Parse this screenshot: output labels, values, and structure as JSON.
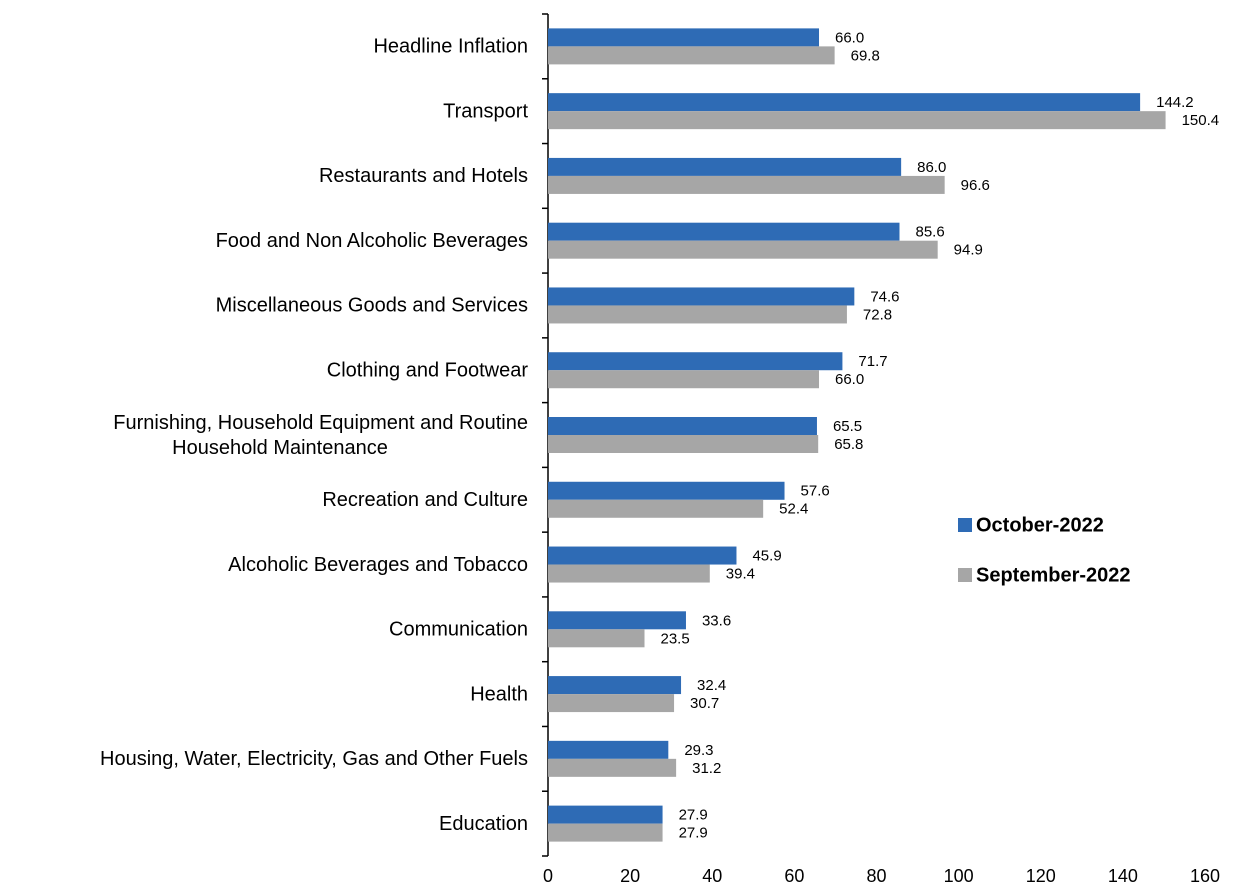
{
  "chart_data": {
    "type": "bar",
    "orientation": "horizontal",
    "categories": [
      "Headline Inflation",
      "Transport",
      "Restaurants and Hotels",
      "Food and Non Alcoholic Beverages",
      "Miscellaneous Goods and Services",
      "Clothing and Footwear",
      "Furnishing, Household Equipment and Routine Household Maintenance",
      "Recreation and Culture",
      "Alcoholic Beverages and Tobacco",
      "Communication",
      "Health",
      "Housing, Water, Electricity, Gas and Other Fuels",
      "Education"
    ],
    "category_lines": [
      [
        "Headline Inflation"
      ],
      [
        "Transport"
      ],
      [
        "Restaurants and Hotels"
      ],
      [
        "Food and Non Alcoholic Beverages"
      ],
      [
        "Miscellaneous Goods and Services"
      ],
      [
        "Clothing and Footwear"
      ],
      [
        "Furnishing, Household Equipment and Routine",
        "Household Maintenance"
      ],
      [
        "Recreation and Culture"
      ],
      [
        "Alcoholic Beverages and Tobacco"
      ],
      [
        "Communication"
      ],
      [
        "Health"
      ],
      [
        "Housing, Water, Electricity, Gas and Other Fuels"
      ],
      [
        "Education"
      ]
    ],
    "series": [
      {
        "name": "October-2022",
        "color": "#2E6BB5",
        "values": [
          66.0,
          144.2,
          86.0,
          85.6,
          74.6,
          71.7,
          65.5,
          57.6,
          45.9,
          33.6,
          32.4,
          29.3,
          27.9
        ],
        "labels": [
          "66.0",
          "144.2",
          "86.0",
          "85.6",
          "74.6",
          "71.7",
          "65.5",
          "57.6",
          "45.9",
          "33.6",
          "32.4",
          "29.3",
          "27.9"
        ]
      },
      {
        "name": "September-2022",
        "color": "#A6A6A6",
        "values": [
          69.8,
          150.4,
          96.6,
          94.9,
          72.8,
          66.0,
          65.8,
          52.4,
          39.4,
          23.5,
          30.7,
          31.2,
          27.9
        ],
        "labels": [
          "69.8",
          "150.4",
          "96.6",
          "94.9",
          "72.8",
          "66.0",
          "65.8",
          "52.4",
          "39.4",
          "23.5",
          "30.7",
          "31.2",
          "27.9"
        ]
      }
    ],
    "xlim": [
      0,
      160
    ],
    "xticks": [
      0,
      20,
      40,
      60,
      80,
      100,
      120,
      140,
      160
    ],
    "xtick_labels": [
      "0",
      "20",
      "40",
      "60",
      "80",
      "100",
      "120",
      "140",
      "160"
    ],
    "grid": false,
    "legend_position": "right"
  }
}
